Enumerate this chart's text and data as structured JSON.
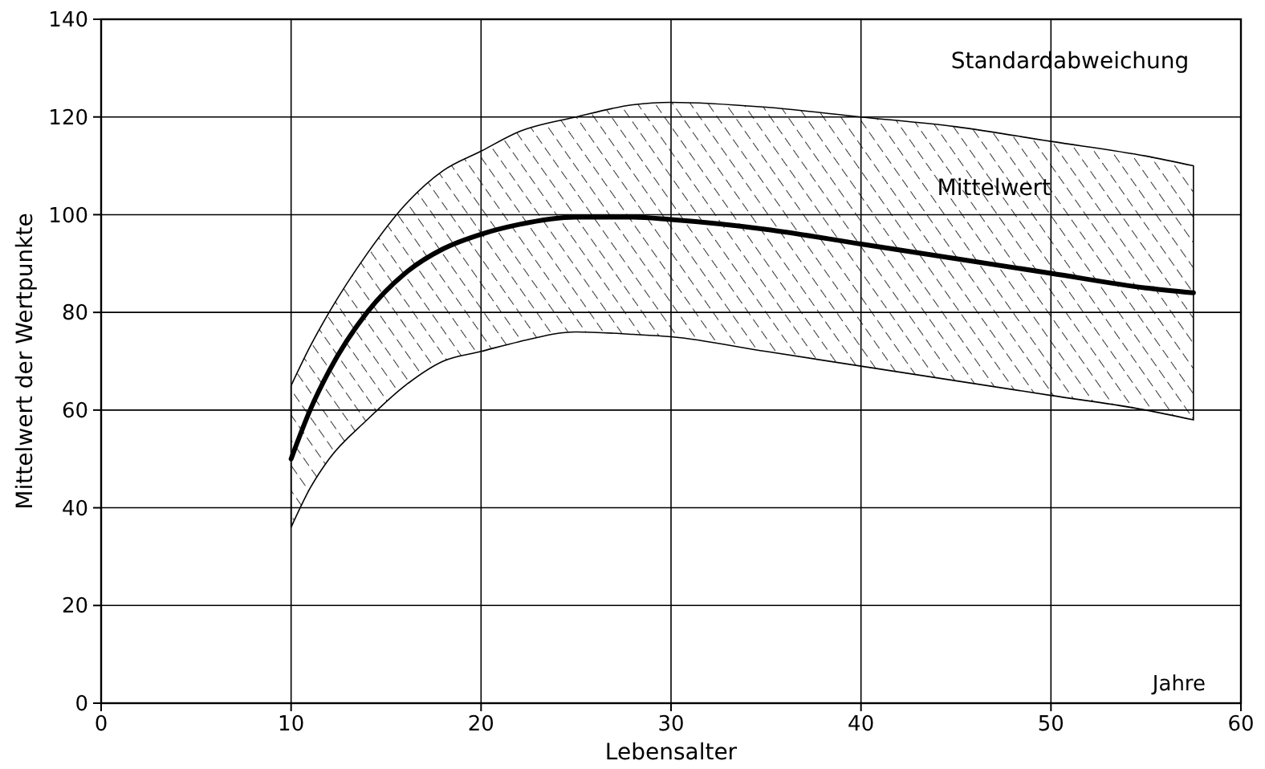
{
  "chart_data": {
    "type": "line",
    "xlabel": "Lebensalter",
    "ylabel": "Mittelwert der Wertpunkte",
    "x": [
      10,
      11,
      12,
      14,
      16,
      18,
      20,
      22,
      25,
      28,
      30,
      35,
      40,
      45,
      50,
      55,
      57.5
    ],
    "series": [
      {
        "color": "#000000",
        "values": [
          50,
          60,
          68,
          80,
          88,
          93,
          96,
          98,
          99.5,
          99.5,
          99,
          97,
          94,
          91,
          88,
          85,
          84
        ],
        "lower": [
          36,
          44,
          50,
          58,
          65,
          70,
          72,
          74,
          76,
          75.5,
          75,
          72,
          69,
          66,
          63,
          60,
          58
        ],
        "upper": [
          65,
          73,
          80,
          92,
          102,
          109,
          113,
          117,
          120,
          122.5,
          123,
          122,
          120,
          118,
          115,
          112,
          110
        ]
      }
    ],
    "xlim": [
      0,
      60
    ],
    "ylim": [
      0,
      140
    ],
    "xticks": [
      0,
      10,
      20,
      30,
      40,
      50,
      60
    ],
    "yticks": [
      0,
      20,
      40,
      60,
      80,
      100,
      120,
      140
    ],
    "grid": true,
    "annotations": [
      "Standardabweichung",
      "Mittelwert",
      "Jahre"
    ]
  }
}
